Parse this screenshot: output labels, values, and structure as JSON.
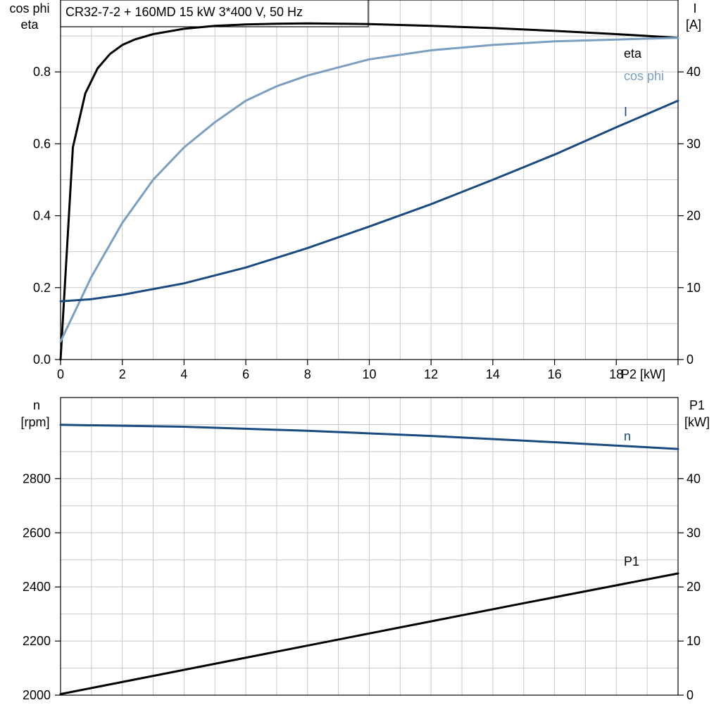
{
  "chart_data": [
    {
      "type": "line",
      "title": "CR32-7-2 + 160MD   15 kW   3*400 V, 50 Hz",
      "xlabel": "P2 [kW]",
      "xlim": [
        0,
        20
      ],
      "xticks": [
        0,
        2,
        4,
        6,
        8,
        10,
        12,
        14,
        16,
        18
      ],
      "ylabel_left": [
        "cos phi",
        "eta"
      ],
      "ylim_left": [
        0,
        1
      ],
      "yticks_left": [
        "0.0",
        "0.2",
        "0.4",
        "0.6",
        "0.8"
      ],
      "ylabel_right": [
        "I",
        "[A]"
      ],
      "ylim_right": [
        0,
        50
      ],
      "yticks_right": [
        "0",
        "10",
        "20",
        "30",
        "40"
      ],
      "grid": true,
      "series": [
        {
          "name": "eta",
          "axis": "left",
          "color": "#000000",
          "x": [
            0,
            0.4,
            0.8,
            1.2,
            1.6,
            2,
            2.4,
            3,
            4,
            5,
            6,
            7,
            8,
            10,
            12,
            14,
            16,
            18,
            20
          ],
          "y": [
            0.0,
            0.59,
            0.74,
            0.81,
            0.85,
            0.875,
            0.89,
            0.905,
            0.92,
            0.928,
            0.932,
            0.934,
            0.935,
            0.933,
            0.928,
            0.922,
            0.914,
            0.905,
            0.895
          ]
        },
        {
          "name": "cos phi",
          "axis": "left",
          "color": "#7a9fc0",
          "x": [
            0,
            0.5,
            1,
            2,
            3,
            4,
            5,
            6,
            7,
            8,
            10,
            12,
            14,
            16,
            18,
            20
          ],
          "y": [
            0.05,
            0.14,
            0.23,
            0.38,
            0.5,
            0.59,
            0.66,
            0.72,
            0.76,
            0.79,
            0.835,
            0.86,
            0.875,
            0.885,
            0.89,
            0.895
          ]
        },
        {
          "name": "I",
          "axis": "right",
          "color": "#1a4a80",
          "x": [
            0,
            1,
            2,
            4,
            6,
            8,
            10,
            12,
            14,
            16,
            18,
            20
          ],
          "y": [
            8.1,
            8.4,
            9.0,
            10.6,
            12.8,
            15.5,
            18.5,
            21.6,
            25.0,
            28.5,
            32.3,
            36.0
          ]
        }
      ]
    },
    {
      "type": "line",
      "xlim": [
        0,
        20
      ],
      "ylabel_left": [
        "n",
        "[rpm]"
      ],
      "ylim_left": [
        2000,
        3100
      ],
      "yticks_left": [
        "2000",
        "2200",
        "2400",
        "2600",
        "2800"
      ],
      "ylabel_right": [
        "P1",
        "[kW]"
      ],
      "ylim_right": [
        0,
        55
      ],
      "yticks_right": [
        "0",
        "10",
        "20",
        "30",
        "40"
      ],
      "grid": true,
      "series": [
        {
          "name": "n",
          "axis": "left",
          "color": "#1a4a80",
          "x": [
            0,
            4,
            8,
            12,
            16,
            20
          ],
          "y": [
            2999,
            2992,
            2977,
            2958,
            2935,
            2910
          ]
        },
        {
          "name": "P1",
          "axis": "right",
          "color": "#000000",
          "x": [
            0,
            5,
            10,
            15,
            20
          ],
          "y": [
            0.2,
            5.8,
            11.4,
            17.0,
            22.5
          ]
        }
      ]
    }
  ]
}
